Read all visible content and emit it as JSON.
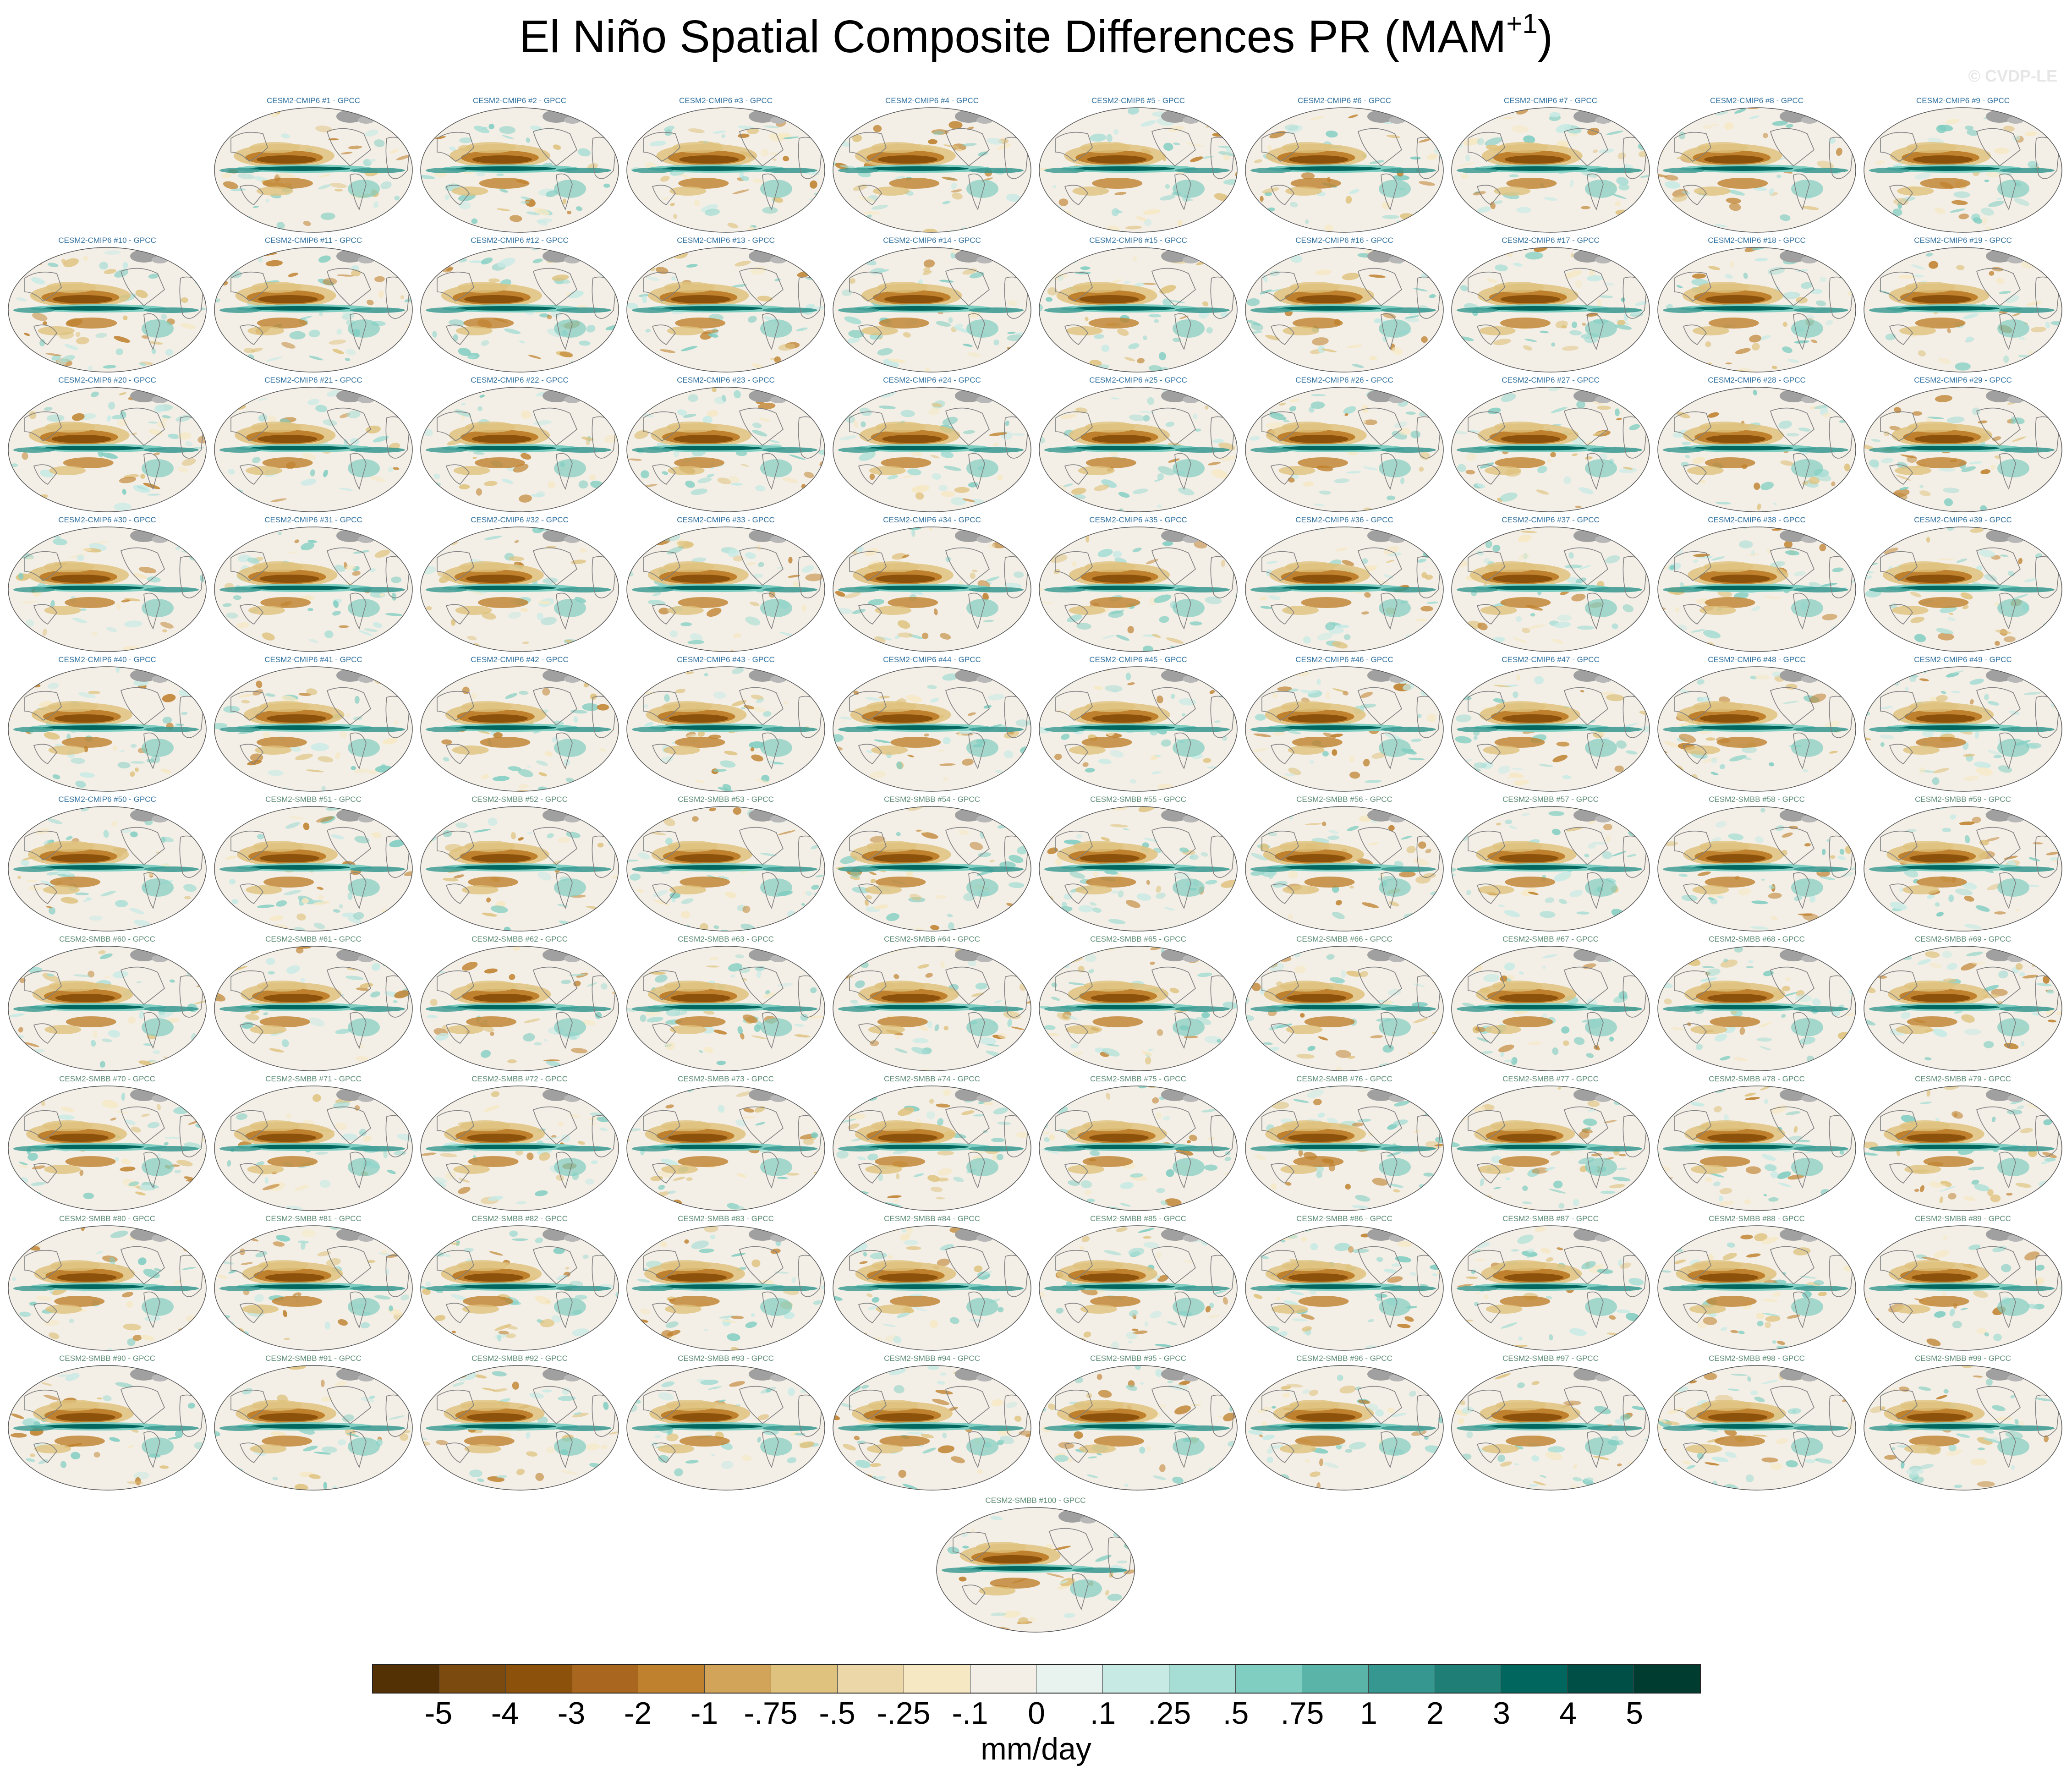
{
  "title": {
    "main": "El Niño Spatial Composite Differences PR (MAM",
    "superscript": "+1",
    "close": ")"
  },
  "watermark": "© CVDP-LE",
  "panels": [
    {
      "label": "CESM2-CMIP6 #1 - GPCC",
      "group": "cmip6"
    },
    {
      "label": "CESM2-CMIP6 #2 - GPCC",
      "group": "cmip6"
    },
    {
      "label": "CESM2-CMIP6 #3 - GPCC",
      "group": "cmip6"
    },
    {
      "label": "CESM2-CMIP6 #4 - GPCC",
      "group": "cmip6"
    },
    {
      "label": "CESM2-CMIP6 #5 - GPCC",
      "group": "cmip6"
    },
    {
      "label": "CESM2-CMIP6 #6 - GPCC",
      "group": "cmip6"
    },
    {
      "label": "CESM2-CMIP6 #7 - GPCC",
      "group": "cmip6"
    },
    {
      "label": "CESM2-CMIP6 #8 - GPCC",
      "group": "cmip6"
    },
    {
      "label": "CESM2-CMIP6 #9 - GPCC",
      "group": "cmip6"
    },
    {
      "label": "CESM2-CMIP6 #10 - GPCC",
      "group": "cmip6"
    },
    {
      "label": "CESM2-CMIP6 #11 - GPCC",
      "group": "cmip6"
    },
    {
      "label": "CESM2-CMIP6 #12 - GPCC",
      "group": "cmip6"
    },
    {
      "label": "CESM2-CMIP6 #13 - GPCC",
      "group": "cmip6"
    },
    {
      "label": "CESM2-CMIP6 #14 - GPCC",
      "group": "cmip6"
    },
    {
      "label": "CESM2-CMIP6 #15 - GPCC",
      "group": "cmip6"
    },
    {
      "label": "CESM2-CMIP6 #16 - GPCC",
      "group": "cmip6"
    },
    {
      "label": "CESM2-CMIP6 #17 - GPCC",
      "group": "cmip6"
    },
    {
      "label": "CESM2-CMIP6 #18 - GPCC",
      "group": "cmip6"
    },
    {
      "label": "CESM2-CMIP6 #19 - GPCC",
      "group": "cmip6"
    },
    {
      "label": "CESM2-CMIP6 #20 - GPCC",
      "group": "cmip6"
    },
    {
      "label": "CESM2-CMIP6 #21 - GPCC",
      "group": "cmip6"
    },
    {
      "label": "CESM2-CMIP6 #22 - GPCC",
      "group": "cmip6"
    },
    {
      "label": "CESM2-CMIP6 #23 - GPCC",
      "group": "cmip6"
    },
    {
      "label": "CESM2-CMIP6 #24 - GPCC",
      "group": "cmip6"
    },
    {
      "label": "CESM2-CMIP6 #25 - GPCC",
      "group": "cmip6"
    },
    {
      "label": "CESM2-CMIP6 #26 - GPCC",
      "group": "cmip6"
    },
    {
      "label": "CESM2-CMIP6 #27 - GPCC",
      "group": "cmip6"
    },
    {
      "label": "CESM2-CMIP6 #28 - GPCC",
      "group": "cmip6"
    },
    {
      "label": "CESM2-CMIP6 #29 - GPCC",
      "group": "cmip6"
    },
    {
      "label": "CESM2-CMIP6 #30 - GPCC",
      "group": "cmip6"
    },
    {
      "label": "CESM2-CMIP6 #31 - GPCC",
      "group": "cmip6"
    },
    {
      "label": "CESM2-CMIP6 #32 - GPCC",
      "group": "cmip6"
    },
    {
      "label": "CESM2-CMIP6 #33 - GPCC",
      "group": "cmip6"
    },
    {
      "label": "CESM2-CMIP6 #34 - GPCC",
      "group": "cmip6"
    },
    {
      "label": "CESM2-CMIP6 #35 - GPCC",
      "group": "cmip6"
    },
    {
      "label": "CESM2-CMIP6 #36 - GPCC",
      "group": "cmip6"
    },
    {
      "label": "CESM2-CMIP6 #37 - GPCC",
      "group": "cmip6"
    },
    {
      "label": "CESM2-CMIP6 #38 - GPCC",
      "group": "cmip6"
    },
    {
      "label": "CESM2-CMIP6 #39 - GPCC",
      "group": "cmip6"
    },
    {
      "label": "CESM2-CMIP6 #40 - GPCC",
      "group": "cmip6"
    },
    {
      "label": "CESM2-CMIP6 #41 - GPCC",
      "group": "cmip6"
    },
    {
      "label": "CESM2-CMIP6 #42 - GPCC",
      "group": "cmip6"
    },
    {
      "label": "CESM2-CMIP6 #43 - GPCC",
      "group": "cmip6"
    },
    {
      "label": "CESM2-CMIP6 #44 - GPCC",
      "group": "cmip6"
    },
    {
      "label": "CESM2-CMIP6 #45 - GPCC",
      "group": "cmip6"
    },
    {
      "label": "CESM2-CMIP6 #46 - GPCC",
      "group": "cmip6"
    },
    {
      "label": "CESM2-CMIP6 #47 - GPCC",
      "group": "cmip6"
    },
    {
      "label": "CESM2-CMIP6 #48 - GPCC",
      "group": "cmip6"
    },
    {
      "label": "CESM2-CMIP6 #49 - GPCC",
      "group": "cmip6"
    },
    {
      "label": "CESM2-CMIP6 #50 - GPCC",
      "group": "cmip6"
    },
    {
      "label": "CESM2-SMBB #51 - GPCC",
      "group": "smbb"
    },
    {
      "label": "CESM2-SMBB #52 - GPCC",
      "group": "smbb"
    },
    {
      "label": "CESM2-SMBB #53 - GPCC",
      "group": "smbb"
    },
    {
      "label": "CESM2-SMBB #54 - GPCC",
      "group": "smbb"
    },
    {
      "label": "CESM2-SMBB #55 - GPCC",
      "group": "smbb"
    },
    {
      "label": "CESM2-SMBB #56 - GPCC",
      "group": "smbb"
    },
    {
      "label": "CESM2-SMBB #57 - GPCC",
      "group": "smbb"
    },
    {
      "label": "CESM2-SMBB #58 - GPCC",
      "group": "smbb"
    },
    {
      "label": "CESM2-SMBB #59 - GPCC",
      "group": "smbb"
    },
    {
      "label": "CESM2-SMBB #60 - GPCC",
      "group": "smbb"
    },
    {
      "label": "CESM2-SMBB #61 - GPCC",
      "group": "smbb"
    },
    {
      "label": "CESM2-SMBB #62 - GPCC",
      "group": "smbb"
    },
    {
      "label": "CESM2-SMBB #63 - GPCC",
      "group": "smbb"
    },
    {
      "label": "CESM2-SMBB #64 - GPCC",
      "group": "smbb"
    },
    {
      "label": "CESM2-SMBB #65 - GPCC",
      "group": "smbb"
    },
    {
      "label": "CESM2-SMBB #66 - GPCC",
      "group": "smbb"
    },
    {
      "label": "CESM2-SMBB #67 - GPCC",
      "group": "smbb"
    },
    {
      "label": "CESM2-SMBB #68 - GPCC",
      "group": "smbb"
    },
    {
      "label": "CESM2-SMBB #69 - GPCC",
      "group": "smbb"
    },
    {
      "label": "CESM2-SMBB #70 - GPCC",
      "group": "smbb"
    },
    {
      "label": "CESM2-SMBB #71 - GPCC",
      "group": "smbb"
    },
    {
      "label": "CESM2-SMBB #72 - GPCC",
      "group": "smbb"
    },
    {
      "label": "CESM2-SMBB #73 - GPCC",
      "group": "smbb"
    },
    {
      "label": "CESM2-SMBB #74 - GPCC",
      "group": "smbb"
    },
    {
      "label": "CESM2-SMBB #75 - GPCC",
      "group": "smbb"
    },
    {
      "label": "CESM2-SMBB #76 - GPCC",
      "group": "smbb"
    },
    {
      "label": "CESM2-SMBB #77 - GPCC",
      "group": "smbb"
    },
    {
      "label": "CESM2-SMBB #78 - GPCC",
      "group": "smbb"
    },
    {
      "label": "CESM2-SMBB #79 - GPCC",
      "group": "smbb"
    },
    {
      "label": "CESM2-SMBB #80 - GPCC",
      "group": "smbb"
    },
    {
      "label": "CESM2-SMBB #81 - GPCC",
      "group": "smbb"
    },
    {
      "label": "CESM2-SMBB #82 - GPCC",
      "group": "smbb"
    },
    {
      "label": "CESM2-SMBB #83 - GPCC",
      "group": "smbb"
    },
    {
      "label": "CESM2-SMBB #84 - GPCC",
      "group": "smbb"
    },
    {
      "label": "CESM2-SMBB #85 - GPCC",
      "group": "smbb"
    },
    {
      "label": "CESM2-SMBB #86 - GPCC",
      "group": "smbb"
    },
    {
      "label": "CESM2-SMBB #87 - GPCC",
      "group": "smbb"
    },
    {
      "label": "CESM2-SMBB #88 - GPCC",
      "group": "smbb"
    },
    {
      "label": "CESM2-SMBB #89 - GPCC",
      "group": "smbb"
    },
    {
      "label": "CESM2-SMBB #90 - GPCC",
      "group": "smbb"
    },
    {
      "label": "CESM2-SMBB #91 - GPCC",
      "group": "smbb"
    },
    {
      "label": "CESM2-SMBB #92 - GPCC",
      "group": "smbb"
    },
    {
      "label": "CESM2-SMBB #93 - GPCC",
      "group": "smbb"
    },
    {
      "label": "CESM2-SMBB #94 - GPCC",
      "group": "smbb"
    },
    {
      "label": "CESM2-SMBB #95 - GPCC",
      "group": "smbb"
    },
    {
      "label": "CESM2-SMBB #96 - GPCC",
      "group": "smbb"
    },
    {
      "label": "CESM2-SMBB #97 - GPCC",
      "group": "smbb"
    },
    {
      "label": "CESM2-SMBB #98 - GPCC",
      "group": "smbb"
    },
    {
      "label": "CESM2-SMBB #99 - GPCC",
      "group": "smbb"
    },
    {
      "label": "CESM2-SMBB #100 - GPCC",
      "group": "smbb"
    }
  ],
  "colorbar": {
    "colors": [
      "#543005",
      "#7a4a0e",
      "#8c510a",
      "#a8661e",
      "#bf812d",
      "#d1a45a",
      "#dfc27d",
      "#ecd7a8",
      "#f6e8c3",
      "#f3efe7",
      "#e8f3ef",
      "#c7eae5",
      "#a6ddd4",
      "#80cdc1",
      "#5ab4a8",
      "#35978f",
      "#1f7f77",
      "#01665e",
      "#004f46",
      "#003c30"
    ],
    "tick_labels": [
      "-5",
      "-4",
      "-3",
      "-2",
      "-1",
      "-.75",
      "-.5",
      "-.25",
      "-.1",
      "0",
      ".1",
      ".25",
      ".5",
      ".75",
      "1",
      "2",
      "3",
      "4",
      "5"
    ],
    "units": "mm/day"
  }
}
